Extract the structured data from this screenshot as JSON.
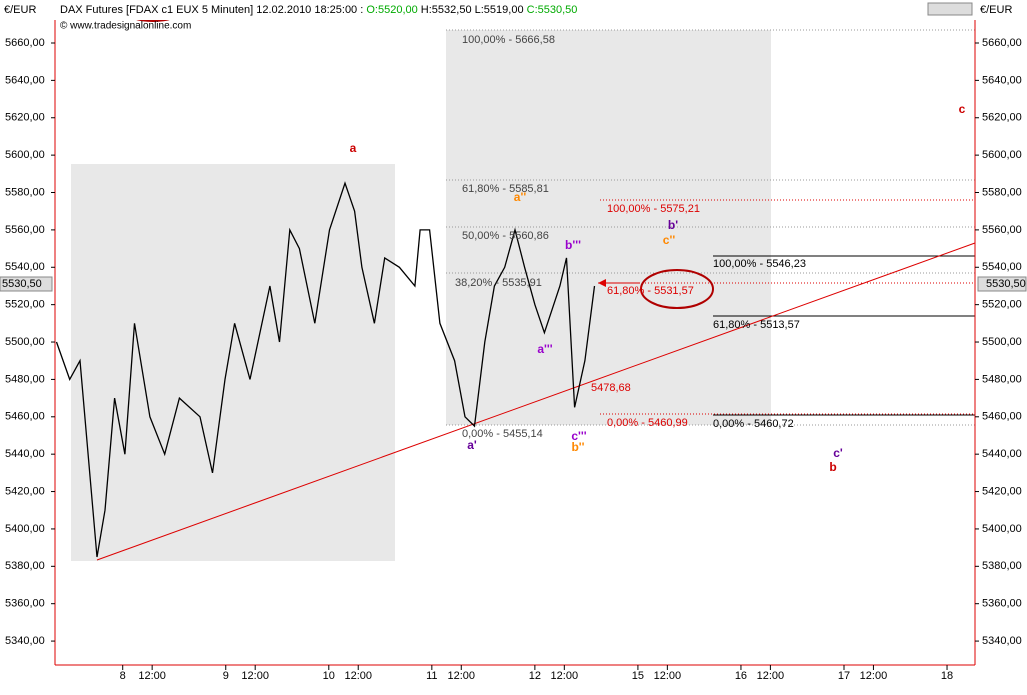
{
  "chart_data": {
    "type": "line",
    "header": {
      "currency": "€/EUR",
      "instrument": "DAX Futures [FDAX c1 EUX  5 Minuten]",
      "datetime": "12.02.2010 18:25:00 :",
      "open": "O:5520,00",
      "high": "H:5532,50",
      "low": "L:5519,00",
      "close": "C:5530,50",
      "copyright": "© www.tradesignalonline.com"
    },
    "last_price_label": "5530,50",
    "series": [
      {
        "name": "FDAX c1",
        "color": "#000000",
        "x": [
          -9.0,
          -7.2,
          -5.8,
          -3.5,
          -2.4,
          -1.1,
          0.3,
          1.6,
          3.7,
          5.7,
          7.7,
          10.5,
          12.2,
          13.9,
          15.2,
          17.3,
          20.0,
          21.3,
          22.7,
          24.0,
          26.1,
          28.1,
          30.2,
          31.5,
          32.5,
          34.2,
          35.6,
          37.6,
          39.7,
          40.4,
          41.7,
          43.1,
          45.1,
          46.5,
          47.8,
          49.2,
          50.5,
          51.9,
          53.3,
          54.6,
          56.0,
          57.3,
          59.4,
          60.3,
          61.4,
          62.8,
          64.1
        ],
        "values": [
          5500,
          5480,
          5490,
          5385,
          5410,
          5470,
          5440,
          5510,
          5460,
          5440,
          5470,
          5460,
          5430,
          5480,
          5510,
          5480,
          5530,
          5500,
          5560,
          5550,
          5510,
          5560,
          5585,
          5570,
          5540,
          5510,
          5545,
          5540,
          5530,
          5560,
          5560,
          5510,
          5490,
          5460,
          5455,
          5500,
          5530,
          5540,
          5560,
          5540,
          5520,
          5505,
          5530,
          5545,
          5465,
          5490,
          5530
        ]
      }
    ],
    "xlim": [
      -9.2,
      115.8
    ],
    "xticks": [
      {
        "value": 0,
        "label": "8"
      },
      {
        "value": 4,
        "label": "12:00"
      },
      {
        "value": 14,
        "label": "9"
      },
      {
        "value": 18,
        "label": "12:00"
      },
      {
        "value": 28,
        "label": "10"
      },
      {
        "value": 32,
        "label": "12:00"
      },
      {
        "value": 42,
        "label": "11"
      },
      {
        "value": 46,
        "label": "12:00"
      },
      {
        "value": 56,
        "label": "12"
      },
      {
        "value": 60,
        "label": "12:00"
      },
      {
        "value": 70,
        "label": "15"
      },
      {
        "value": 74,
        "label": "12:00"
      },
      {
        "value": 84,
        "label": "16"
      },
      {
        "value": 88,
        "label": "12:00"
      },
      {
        "value": 98,
        "label": "17"
      },
      {
        "value": 102,
        "label": "12:00"
      },
      {
        "value": 112,
        "label": "18"
      }
    ],
    "ylim": [
      5327.2,
      5683
    ],
    "yticks": [
      {
        "value": 5340,
        "label": "5340,00"
      },
      {
        "value": 5360,
        "label": "5360,00"
      },
      {
        "value": 5380,
        "label": "5380,00"
      },
      {
        "value": 5400,
        "label": "5400,00"
      },
      {
        "value": 5420,
        "label": "5420,00"
      },
      {
        "value": 5440,
        "label": "5440,00"
      },
      {
        "value": 5460,
        "label": "5460,00"
      },
      {
        "value": 5480,
        "label": "5480,00"
      },
      {
        "value": 5500,
        "label": "5500,00"
      },
      {
        "value": 5520,
        "label": "5520,00"
      },
      {
        "value": 5540,
        "label": "5540,00"
      },
      {
        "value": 5560,
        "label": "5560,00"
      },
      {
        "value": 5580,
        "label": "5580,00"
      },
      {
        "value": 5600,
        "label": "5600,00"
      },
      {
        "value": 5620,
        "label": "5620,00"
      },
      {
        "value": 5640,
        "label": "5640,00"
      },
      {
        "value": 5660,
        "label": "5660,00"
      }
    ],
    "annotations": [
      {
        "text": "100,00% - 5666,58",
        "color": "#444444"
      },
      {
        "text": "61,80% - 5585,81",
        "color": "#444444"
      },
      {
        "text": "50,00% - 5560,86",
        "color": "#444444"
      },
      {
        "text": "38,20% - 5535,91",
        "color": "#444444"
      },
      {
        "text": "0,00% - 5455,14",
        "color": "#444444"
      },
      {
        "text": "100,00% - 5575,21",
        "color": "#dd0000"
      },
      {
        "text": "61,80% - 5531,57",
        "color": "#dd0000"
      },
      {
        "text": "0,00% - 5460,99",
        "color": "#dd0000"
      },
      {
        "text": "5478,68",
        "color": "#dd0000"
      },
      {
        "text": "100,00% - 5546,23",
        "color": "#000000"
      },
      {
        "text": "61,80% - 5513,57",
        "color": "#000000"
      },
      {
        "text": "0,00% - 5460,72",
        "color": "#000000"
      },
      {
        "text": "a",
        "color": "#cc0000"
      },
      {
        "text": "a'",
        "color": "#660099"
      },
      {
        "text": "a''",
        "color": "#ff8800"
      },
      {
        "text": "a'''",
        "color": "#9900cc"
      },
      {
        "text": "b'''",
        "color": "#9900cc"
      },
      {
        "text": "b'",
        "color": "#660099"
      },
      {
        "text": "c''",
        "color": "#ff8800"
      },
      {
        "text": "c'''",
        "color": "#9900cc"
      },
      {
        "text": "b''",
        "color": "#ff8800"
      },
      {
        "text": "c'",
        "color": "#660099"
      },
      {
        "text": "b",
        "color": "#cc0000"
      },
      {
        "text": "c",
        "color": "#cc0000"
      }
    ]
  }
}
